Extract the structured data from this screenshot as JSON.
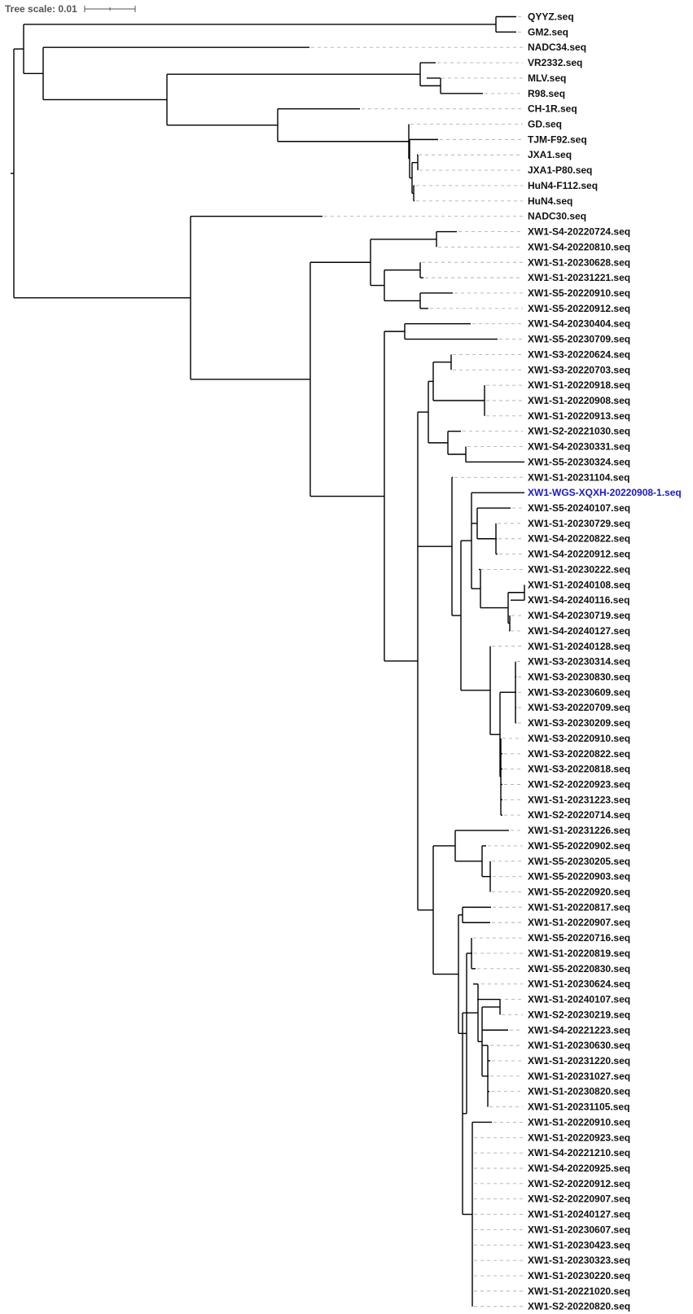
{
  "scale": {
    "label": "Tree scale: 0.01"
  },
  "highlight_color": "#1a1ac8",
  "leaves": [
    "QYYZ.seq",
    "GM2.seq",
    "NADC34.seq",
    "VR2332.seq",
    "MLV.seq",
    "R98.seq",
    "CH-1R.seq",
    "GD.seq",
    "TJM-F92.seq",
    "JXA1.seq",
    "JXA1-P80.seq",
    "HuN4-F112.seq",
    "HuN4.seq",
    "NADC30.seq",
    "XW1-S4-20220724.seq",
    "XW1-S4-20220810.seq",
    "XW1-S1-20230628.seq",
    "XW1-S1-20231221.seq",
    "XW1-S5-20220910.seq",
    "XW1-S5-20220912.seq",
    "XW1-S4-20230404.seq",
    "XW1-S5-20230709.seq",
    "XW1-S3-20220624.seq",
    "XW1-S3-20220703.seq",
    "XW1-S1-20220918.seq",
    "XW1-S1-20220908.seq",
    "XW1-S1-20220913.seq",
    "XW1-S2-20221030.seq",
    "XW1-S4-20230331.seq",
    "XW1-S5-20230324.seq",
    "XW1-S1-20231104.seq",
    "XW1-WGS-XQXH-20220908-1.seq",
    "XW1-S5-20240107.seq",
    "XW1-S1-20230729.seq",
    "XW1-S4-20220822.seq",
    "XW1-S4-20220912.seq",
    "XW1-S1-20230222.seq",
    "XW1-S1-20240108.seq",
    "XW1-S4-20240116.seq",
    "XW1-S4-20230719.seq",
    "XW1-S4-20240127.seq",
    "XW1-S1-20240128.seq",
    "XW1-S3-20230314.seq",
    "XW1-S3-20230830.seq",
    "XW1-S3-20230609.seq",
    "XW1-S3-20220709.seq",
    "XW1-S3-20230209.seq",
    "XW1-S3-20220910.seq",
    "XW1-S3-20220822.seq",
    "XW1-S3-20220818.seq",
    "XW1-S2-20220923.seq",
    "XW1-S1-20231223.seq",
    "XW1-S2-20220714.seq",
    "XW1-S1-20231226.seq",
    "XW1-S5-20220902.seq",
    "XW1-S5-20230205.seq",
    "XW1-S5-20220903.seq",
    "XW1-S5-20220920.seq",
    "XW1-S1-20220817.seq",
    "XW1-S1-20220907.seq",
    "XW1-S5-20220716.seq",
    "XW1-S1-20220819.seq",
    "XW1-S5-20220830.seq",
    "XW1-S1-20230624.seq",
    "XW1-S1-20240107.seq",
    "XW1-S2-20230219.seq",
    "XW1-S4-20221223.seq",
    "XW1-S1-20230630.seq",
    "XW1-S1-20231220.seq",
    "XW1-S1-20231027.seq",
    "XW1-S1-20230820.seq",
    "XW1-S1-20231105.seq",
    "XW1-S1-20220910.seq",
    "XW1-S1-20220923.seq",
    "XW1-S4-20221210.seq",
    "XW1-S4-20220925.seq",
    "XW1-S2-20220912.seq",
    "XW1-S2-20220907.seq",
    "XW1-S1-20240127.seq",
    "XW1-S1-20230607.seq",
    "XW1-S1-20230423.seq",
    "XW1-S1-20230323.seq",
    "XW1-S1-20230220.seq",
    "XW1-S1-20221020.seq",
    "XW1-S2-20220820.seq"
  ],
  "highlighted_leaf": "XW1-WGS-XQXH-20220908-1.seq"
}
